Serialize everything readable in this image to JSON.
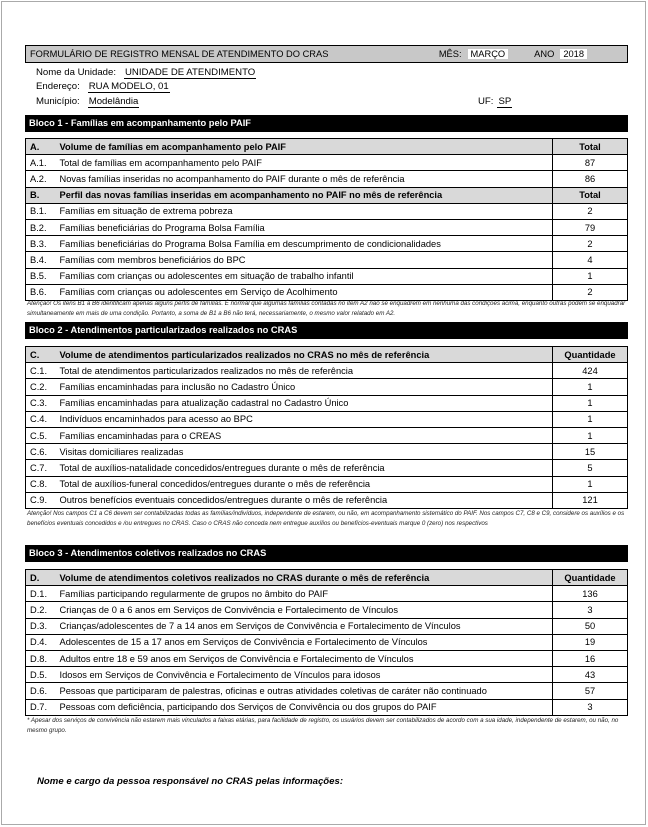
{
  "header": {
    "title": "FORMULÁRIO DE REGISTRO MENSAL DE ATENDIMENTO DO CRAS",
    "mes_label": "MÊS:",
    "mes": "MARÇO",
    "ano_label": "ANO",
    "ano": "2018"
  },
  "info": {
    "unidade_label": "Nome da Unidade:",
    "unidade": "UNIDADE DE ATENDIMENTO",
    "endereco_label": "Endereço:",
    "endereco": "RUA MODELO, 01",
    "municipio_label": "Município:",
    "municipio": "Modelândia",
    "uf_label": "UF:",
    "uf": "SP"
  },
  "bloco1": {
    "title": "Bloco 1 - Famílias em acompanhamento pelo PAIF",
    "a_header": {
      "code": "A.",
      "label": "Volume de famílias em acompanhamento pelo PAIF",
      "value": "Total"
    },
    "a_rows": [
      {
        "code": "A.1.",
        "label": "Total de famílias em acompanhamento pelo PAIF",
        "value": "87"
      },
      {
        "code": "A.2.",
        "label": "Novas famílias inseridas no acompanhamento do PAIF durante o mês de referência",
        "value": "86"
      }
    ],
    "b_header": {
      "code": "B.",
      "label": "Perfil das novas famílias inseridas em acompanhamento no PAIF no mês de referência",
      "value": "Total"
    },
    "b_rows": [
      {
        "code": "B.1.",
        "label": "Famílias em situação de extrema pobreza",
        "value": "2"
      },
      {
        "code": "B.2.",
        "label": "Famílias beneficiárias do Programa Bolsa Família",
        "value": "79"
      },
      {
        "code": "B.3.",
        "label": "Famílias beneficiárias do Programa Bolsa Família em descumprimento de condicionalidades",
        "value": "2"
      },
      {
        "code": "B.4.",
        "label": "Famílias com membros beneficiários do BPC",
        "value": "4"
      },
      {
        "code": "B.5.",
        "label": "Famílias com crianças ou adolescentes em situação de trabalho infantil",
        "value": "1"
      },
      {
        "code": "B.6.",
        "label": "Famílias com crianças ou adolescentes em Serviço de Acolhimento",
        "value": "2"
      }
    ],
    "note": "Atenção! Os itens B1 a B6 identificam apenas alguns perfis de famílias. É normal que algumas famílias contadas no item A2 não se enquadrem em nenhuma das condições acima, enquanto outras podem se enquadrar simultaneamente em mais de uma condição. Portanto, a soma de B1 a B6 não terá, necessariamente, o mesmo valor relatado em A2."
  },
  "bloco2": {
    "title": "Bloco 2 - Atendimentos particularizados realizados no CRAS",
    "header": {
      "code": "C.",
      "label": "Volume de atendimentos particularizados realizados no CRAS no mês de referência",
      "value": "Quantidade"
    },
    "rows": [
      {
        "code": "C.1.",
        "label": "Total de atendimentos particularizados realizados no mês de referência",
        "value": "424"
      },
      {
        "code": "C.2.",
        "label": "Famílias encaminhadas para inclusão no Cadastro Único",
        "value": "1"
      },
      {
        "code": "C.3.",
        "label": "Famílias encaminhadas para atualização cadastral no Cadastro Único",
        "value": "1"
      },
      {
        "code": "C.4.",
        "label": "Indivíduos encaminhados para acesso ao BPC",
        "value": "1"
      },
      {
        "code": "C.5.",
        "label": "Famílias encaminhadas para o CREAS",
        "value": "1"
      },
      {
        "code": "C.6.",
        "label": "Visitas domiciliares realizadas",
        "value": "15"
      },
      {
        "code": "C.7.",
        "label": "Total de auxílios-natalidade concedidos/entregues durante o mês de referência",
        "value": "5"
      },
      {
        "code": "C.8.",
        "label": "Total de auxílios-funeral concedidos/entregues durante o mês de referência",
        "value": "1"
      },
      {
        "code": "C.9.",
        "label": "Outros benefícios eventuais concedidos/entregues durante o mês de referência",
        "value": "121"
      }
    ],
    "note": "Atenção! Nos campos C1 a C6 devem ser contabilizadas todas as famílias/indivíduos, independente de estarem, ou não, em acompanhamento sistemático do PAIF. Nos campos C7, C8 e C9, considere os auxílios e os benefícios eventuais concedidos e /ou entregues no CRAS. Caso o CRAS não conceda nem entregue auxílios ou benefícios-eventuais marque 0 (zero) nos respectivos"
  },
  "bloco3": {
    "title": "Bloco 3 - Atendimentos coletivos realizados no CRAS",
    "header": {
      "code": "D.",
      "label": "Volume de atendimentos coletivos realizados no CRAS durante o mês de referência",
      "value": "Quantidade"
    },
    "rows": [
      {
        "code": "D.1.",
        "label": "Famílias participando regularmente de grupos no âmbito do PAIF",
        "value": "136"
      },
      {
        "code": "D.2.",
        "label": "Crianças de 0 a 6 anos em Serviços de Convivência e Fortalecimento de Vínculos",
        "value": "3"
      },
      {
        "code": "D.3.",
        "label": "Crianças/adolescentes de 7 a 14 anos em Serviços de Convivência e Fortalecimento de Vínculos",
        "value": "50"
      },
      {
        "code": "D.4.",
        "label": "Adolescentes de 15 a 17 anos em Serviços de Convivência e Fortalecimento de Vínculos",
        "value": "19"
      },
      {
        "code": "D.8.",
        "label": "Adultos entre 18 e 59 anos em Serviços de Convivência e Fortalecimento de Vínculos",
        "value": "16"
      },
      {
        "code": "D.5.",
        "label": "Idosos em Serviços de Convivência e Fortalecimento de Vínculos para idosos",
        "value": "43"
      },
      {
        "code": "D.6.",
        "label": "Pessoas que participaram de palestras, oficinas e outras atividades coletivas de caráter não continuado",
        "value": "57"
      },
      {
        "code": "D.7.",
        "label": "Pessoas com deficiência, participando dos Serviços de Convivência ou dos grupos do PAIF",
        "value": "3"
      }
    ],
    "note": "* Apesar dos serviços de convivência não estarem mais vinculados a faixas etárias, para facilidade de registro, os usuários devem ser contabilizados de acordo com a sua idade, independente de estarem, ou não, no mesmo grupo."
  },
  "signature_label": "Nome e cargo da pessoa responsável no CRAS pelas informações:"
}
